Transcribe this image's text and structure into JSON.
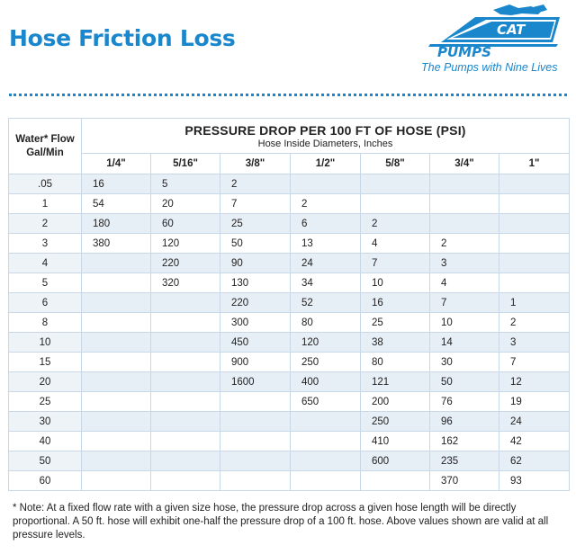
{
  "title": "Hose Friction Loss",
  "logo": {
    "text": "CAT PUMPS",
    "tagline": "The Pumps with Nine Lives"
  },
  "colors": {
    "accent": "#1a86cc",
    "row_shade": "#e6eef6",
    "border": "#c9d8e6"
  },
  "table": {
    "flow_header_line1": "Water* Flow",
    "flow_header_line2": "Gal/Min",
    "group_title": "PRESSURE DROP PER 100 FT OF HOSE (PSI)",
    "group_subtitle": "Hose Inside Diameters, Inches",
    "diameters": [
      "1/4\"",
      "5/16\"",
      "3/8\"",
      "1/2\"",
      "5/8\"",
      "3/4\"",
      "1\""
    ],
    "rows": [
      {
        "flow": ".05",
        "values": [
          "16",
          "5",
          "2",
          "",
          "",
          "",
          ""
        ]
      },
      {
        "flow": "1",
        "values": [
          "54",
          "20",
          "7",
          "2",
          "",
          "",
          ""
        ]
      },
      {
        "flow": "2",
        "values": [
          "180",
          "60",
          "25",
          "6",
          "2",
          "",
          ""
        ]
      },
      {
        "flow": "3",
        "values": [
          "380",
          "120",
          "50",
          "13",
          "4",
          "2",
          ""
        ]
      },
      {
        "flow": "4",
        "values": [
          "",
          "220",
          "90",
          "24",
          "7",
          "3",
          ""
        ]
      },
      {
        "flow": "5",
        "values": [
          "",
          "320",
          "130",
          "34",
          "10",
          "4",
          ""
        ]
      },
      {
        "flow": "6",
        "values": [
          "",
          "",
          "220",
          "52",
          "16",
          "7",
          "1"
        ]
      },
      {
        "flow": "8",
        "values": [
          "",
          "",
          "300",
          "80",
          "25",
          "10",
          "2"
        ]
      },
      {
        "flow": "10",
        "values": [
          "",
          "",
          "450",
          "120",
          "38",
          "14",
          "3"
        ]
      },
      {
        "flow": "15",
        "values": [
          "",
          "",
          "900",
          "250",
          "80",
          "30",
          "7"
        ]
      },
      {
        "flow": "20",
        "values": [
          "",
          "",
          "1600",
          "400",
          "121",
          "50",
          "12"
        ]
      },
      {
        "flow": "25",
        "values": [
          "",
          "",
          "",
          "650",
          "200",
          "76",
          "19"
        ]
      },
      {
        "flow": "30",
        "values": [
          "",
          "",
          "",
          "",
          "250",
          "96",
          "24"
        ]
      },
      {
        "flow": "40",
        "values": [
          "",
          "",
          "",
          "",
          "410",
          "162",
          "42"
        ]
      },
      {
        "flow": "50",
        "values": [
          "",
          "",
          "",
          "",
          "600",
          "235",
          "62"
        ]
      },
      {
        "flow": "60",
        "values": [
          "",
          "",
          "",
          "",
          "",
          "370",
          "93"
        ]
      }
    ]
  },
  "note": "* Note: At a fixed flow rate with a given size hose, the pressure drop across a given hose length will be directly proportional. A 50 ft. hose will exhibit one-half the pressure drop of a 100 ft. hose. Above values shown are valid at all pressure levels."
}
